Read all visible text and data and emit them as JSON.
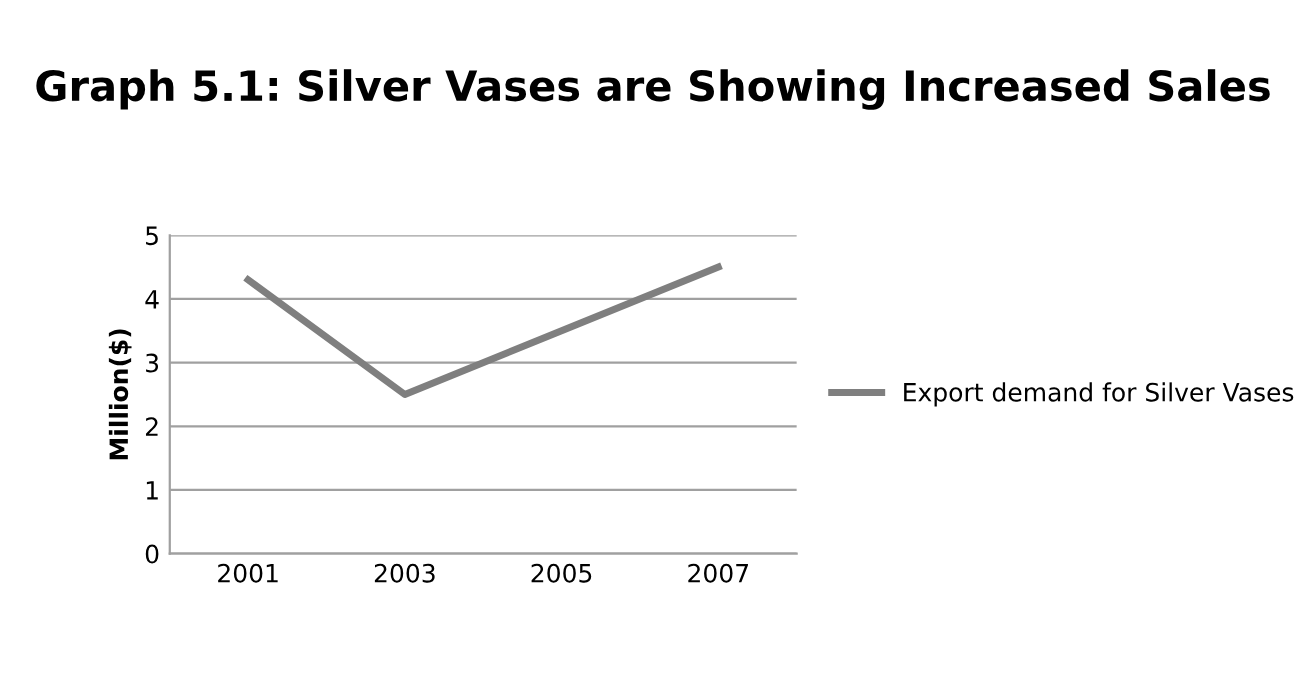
{
  "chart_data": {
    "type": "line",
    "title": "Graph 5.1: Silver Vases are Showing Increased Sales",
    "ylabel": "Million($)",
    "categories": [
      "2001",
      "2003",
      "2005",
      "2007"
    ],
    "series": [
      {
        "name": "Export demand for Silver Vases",
        "color": "#7f7f7f",
        "values": [
          4.3,
          2.5,
          3.5,
          4.5
        ]
      }
    ],
    "ylim": [
      0,
      5
    ],
    "yticks": [
      0,
      1,
      2,
      3,
      4,
      5
    ],
    "grid": "y",
    "legend": "right",
    "marker": "none",
    "line_style": "solid"
  }
}
